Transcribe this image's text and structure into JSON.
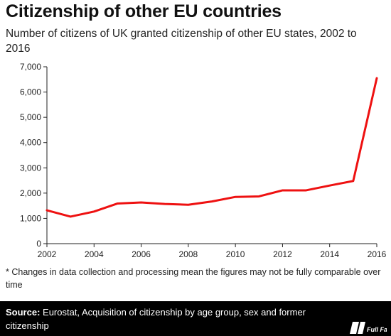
{
  "header": {
    "title": "Citizenship of other EU countries",
    "subtitle": "Number of citizens of UK granted citizenship of other EU states, 2002 to 2016"
  },
  "note": "* Changes in data collection and processing mean the figures may not be fully comparable over time",
  "footer": {
    "source_label": "Source:",
    "source_text": " Eurostat, Acquisition of citizenship by age group, sex and former citizenship",
    "logo_text": "Full Fact"
  },
  "colors": {
    "line": "#ee1111",
    "footer_bg": "#000000",
    "axis": "#222222",
    "grid": "#dddddd"
  },
  "chart_data": {
    "type": "line",
    "title": "Citizenship of other EU countries",
    "subtitle": "Number of citizens of UK granted citizenship of other EU states, 2002 to 2016",
    "xlabel": "",
    "ylabel": "",
    "x": [
      2002,
      2003,
      2004,
      2005,
      2006,
      2007,
      2008,
      2009,
      2010,
      2011,
      2012,
      2013,
      2014,
      2015,
      2016
    ],
    "series": [
      {
        "values": [
          1320,
          1070,
          1270,
          1590,
          1630,
          1570,
          1540,
          1670,
          1850,
          1870,
          2110,
          2110,
          2300,
          2480,
          6550
        ]
      }
    ],
    "xticks": [
      2002,
      2004,
      2006,
      2008,
      2010,
      2012,
      2014,
      2016
    ],
    "xtick_labels": [
      "2002",
      "2004",
      "2006",
      "2008",
      "2010",
      "2012",
      "2014",
      "2016"
    ],
    "yticks": [
      0,
      1000,
      2000,
      3000,
      4000,
      5000,
      6000,
      7000
    ],
    "ytick_labels": [
      "0",
      "1,000",
      "2,000",
      "3,000",
      "4,000",
      "5,000",
      "6,000",
      "7,000"
    ],
    "xlim": [
      2002,
      2016
    ],
    "ylim": [
      0,
      7000
    ],
    "grid": false,
    "legend": "none"
  }
}
